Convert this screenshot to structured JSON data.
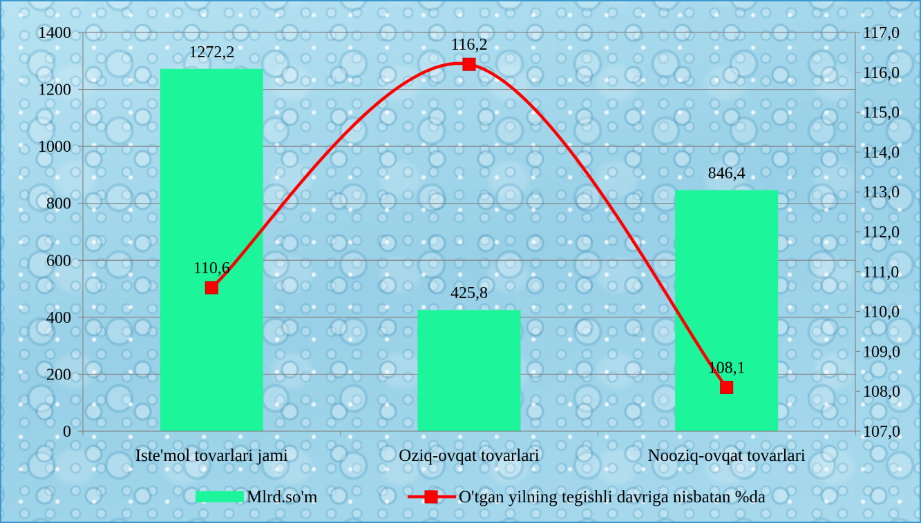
{
  "chart_data": {
    "type": "bar",
    "categories": [
      "Iste'mol tovarlari jami",
      "Oziq-ovqat tovarlari",
      "Nooziq-ovqat tovarlari"
    ],
    "series": [
      {
        "name": "Mlrd.so'm",
        "type": "bar",
        "secondary_axis": false,
        "values": [
          1272.2,
          425.8,
          846.4
        ],
        "data_labels": [
          "1272,2",
          "425,8",
          "846,4"
        ],
        "color": "#1DF59B"
      },
      {
        "name": "O'tgan yilning tegishli davriga nisbatan %da",
        "type": "line",
        "secondary_axis": true,
        "smooth": true,
        "marker": "square",
        "values": [
          110.6,
          116.2,
          108.1
        ],
        "data_labels": [
          "110,6",
          "116,2",
          "108,1"
        ],
        "color": "#FF0000"
      }
    ],
    "y_left": {
      "ylim": [
        0,
        1400
      ],
      "ticks": [
        0,
        200,
        400,
        600,
        800,
        1000,
        1200,
        1400
      ],
      "tick_labels": [
        "0",
        "200",
        "400",
        "600",
        "800",
        "1000",
        "1200",
        "1400"
      ]
    },
    "y_right": {
      "ylim": [
        107,
        117
      ],
      "ticks": [
        107,
        108,
        109,
        110,
        111,
        112,
        113,
        114,
        115,
        116,
        117
      ],
      "tick_labels": [
        "107,0",
        "108,0",
        "109,0",
        "110,0",
        "111,0",
        "112,0",
        "113,0",
        "114,0",
        "115,0",
        "116,0",
        "117,0"
      ]
    },
    "grid": true,
    "legend": "bottom"
  },
  "style": {
    "gridline": "#868686",
    "axis": "#868686",
    "marker_edge": "#C80000"
  }
}
